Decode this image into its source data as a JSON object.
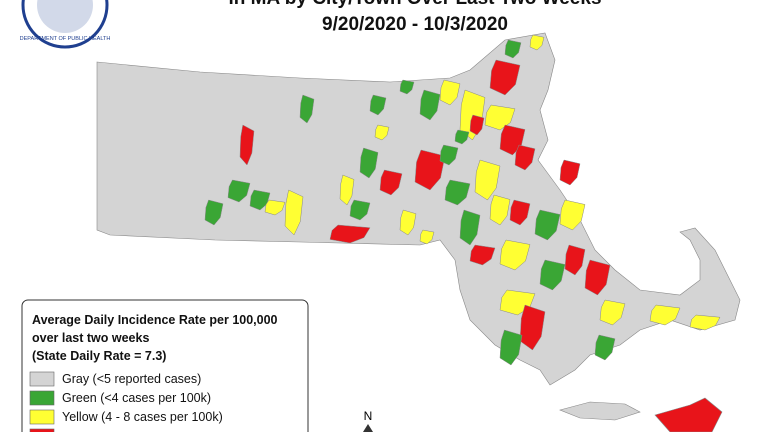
{
  "header": {
    "logo_text": "DEPARTMENT OF PUBLIC HEALTH",
    "title_line1": "in MA by City/Town Over Last Two Weeks",
    "title_line2": "9/20/2020 - 10/3/2020"
  },
  "legend": {
    "title_lines": [
      "Average Daily Incidence Rate per 100,000",
      "over last two weeks",
      "(State Daily Rate = 7.3)"
    ],
    "items": [
      {
        "label": "Gray (<5 reported cases)",
        "color": "#d4d4d4"
      },
      {
        "label": "Green (<4 cases per 100k)",
        "color": "#3aa635"
      },
      {
        "label": "Yellow (4 - 8 cases per 100k)",
        "color": "#ffff33"
      }
    ],
    "red_color": "#e8141a"
  },
  "compass": "N"
}
